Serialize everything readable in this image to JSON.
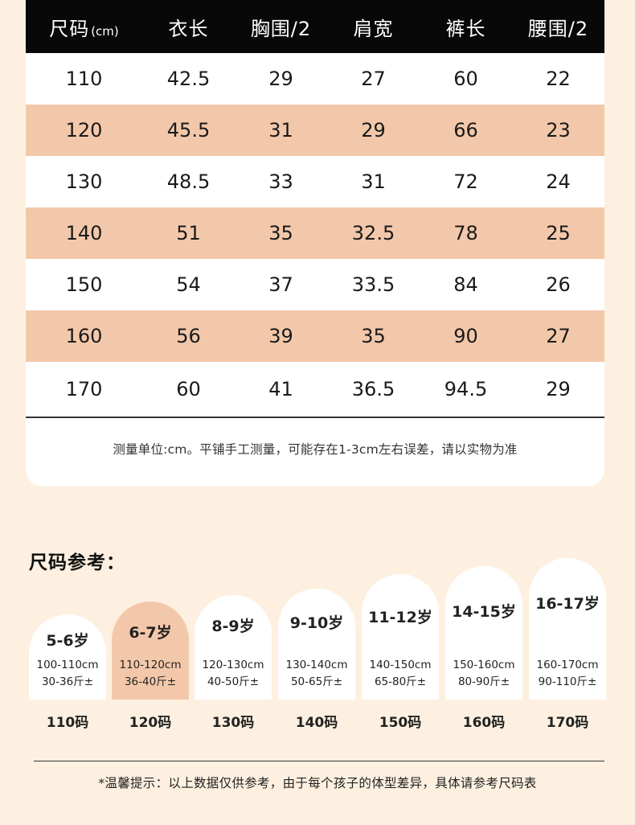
{
  "table": {
    "headers": [
      {
        "main": "尺码",
        "unit": "(cm)"
      },
      {
        "main": "衣长",
        "unit": ""
      },
      {
        "main": "胸围/2",
        "unit": ""
      },
      {
        "main": "肩宽",
        "unit": ""
      },
      {
        "main": "裤长",
        "unit": ""
      },
      {
        "main": "腰围/2",
        "unit": ""
      }
    ],
    "rows": [
      [
        "110",
        "42.5",
        "29",
        "27",
        "60",
        "22"
      ],
      [
        "120",
        "45.5",
        "31",
        "29",
        "66",
        "23"
      ],
      [
        "130",
        "48.5",
        "33",
        "31",
        "72",
        "24"
      ],
      [
        "140",
        "51",
        "35",
        "32.5",
        "78",
        "25"
      ],
      [
        "150",
        "54",
        "37",
        "33.5",
        "84",
        "26"
      ],
      [
        "160",
        "56",
        "39",
        "35",
        "90",
        "27"
      ],
      [
        "170",
        "60",
        "41",
        "36.5",
        "94.5",
        "29"
      ]
    ],
    "note": "测量单位:cm。平铺手工测量，可能存在1-3cm左右误差，请以实物为准"
  },
  "reference": {
    "title": "尺码参考：",
    "items": [
      {
        "age": "5-6岁",
        "height": "100-110cm",
        "weight": "30-36斤±",
        "code": "110码"
      },
      {
        "age": "6-7岁",
        "height": "110-120cm",
        "weight": "36-40斤±",
        "code": "120码"
      },
      {
        "age": "8-9岁",
        "height": "120-130cm",
        "weight": "40-50斤±",
        "code": "130码"
      },
      {
        "age": "9-10岁",
        "height": "130-140cm",
        "weight": "50-65斤±",
        "code": "140码"
      },
      {
        "age": "11-12岁",
        "height": "140-150cm",
        "weight": "65-80斤±",
        "code": "150码"
      },
      {
        "age": "14-15岁",
        "height": "150-160cm",
        "weight": "80-90斤±",
        "code": "160码"
      },
      {
        "age": "16-17岁",
        "height": "160-170cm",
        "weight": "90-110斤±",
        "code": "170码"
      }
    ],
    "highlight_index": 1
  },
  "tip": "*温馨提示：以上数据仅供参考，由于每个孩子的体型差异，具体请参考尺码表",
  "colors": {
    "background": "#fdf0e0",
    "header": "#080808",
    "accent": "#f3c8aa",
    "card": "#ffffff"
  }
}
